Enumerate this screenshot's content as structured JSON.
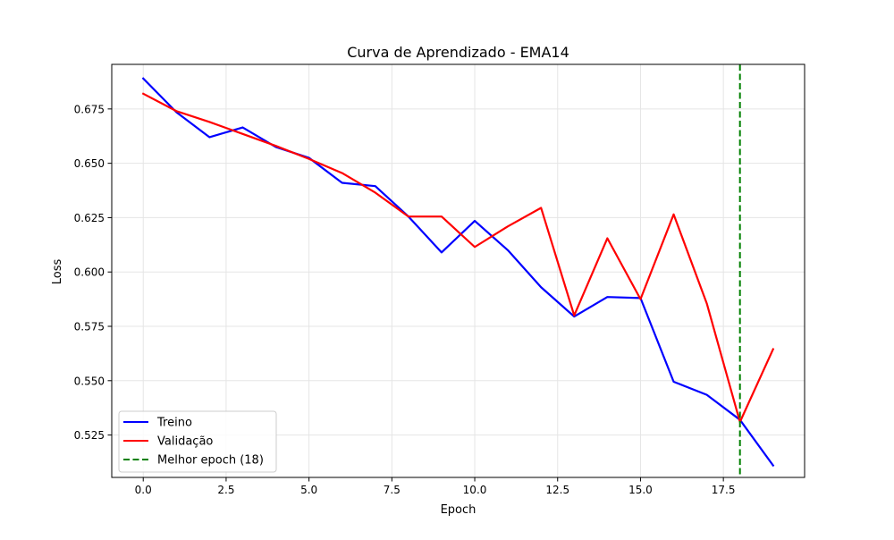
{
  "chart_data": {
    "type": "line",
    "title": "Curva de Aprendizado - EMA14",
    "xlabel": "Epoch",
    "ylabel": "Loss",
    "xlim": [
      -0.95,
      19.95
    ],
    "ylim": [
      0.5055,
      0.6955
    ],
    "x_ticks": [
      0,
      2.5,
      5,
      7.5,
      10,
      12.5,
      15,
      17.5
    ],
    "x_tick_labels": [
      "0.0",
      "2.5",
      "5.0",
      "7.5",
      "10.0",
      "12.5",
      "15.0",
      "17.5"
    ],
    "y_ticks": [
      0.525,
      0.55,
      0.575,
      0.6,
      0.625,
      0.65,
      0.675
    ],
    "y_tick_labels": [
      "0.525",
      "0.550",
      "0.575",
      "0.600",
      "0.625",
      "0.650",
      "0.675"
    ],
    "grid": true,
    "legend_position": "lower-left",
    "x": [
      0,
      1,
      2,
      3,
      4,
      5,
      6,
      7,
      8,
      9,
      10,
      11,
      12,
      13,
      14,
      15,
      16,
      17,
      18,
      19
    ],
    "series": [
      {
        "name": "Treino",
        "color": "#0000ff",
        "values": [
          0.689,
          0.6735,
          0.662,
          0.6665,
          0.6575,
          0.6525,
          0.641,
          0.6395,
          0.6255,
          0.609,
          0.6235,
          0.61,
          0.593,
          0.5795,
          0.5885,
          0.588,
          0.5495,
          0.5435,
          0.532,
          0.511
        ]
      },
      {
        "name": "Validação",
        "color": "#ff0000",
        "values": [
          0.682,
          0.674,
          0.669,
          0.6635,
          0.658,
          0.652,
          0.6455,
          0.6365,
          0.6255,
          0.6255,
          0.6115,
          0.621,
          0.6295,
          0.58,
          0.6155,
          0.5875,
          0.6265,
          0.5855,
          0.531,
          0.5645
        ]
      }
    ],
    "vline": {
      "x": 18,
      "label": "Melhor epoch (18)",
      "color": "#008000",
      "style": "dashed"
    }
  }
}
